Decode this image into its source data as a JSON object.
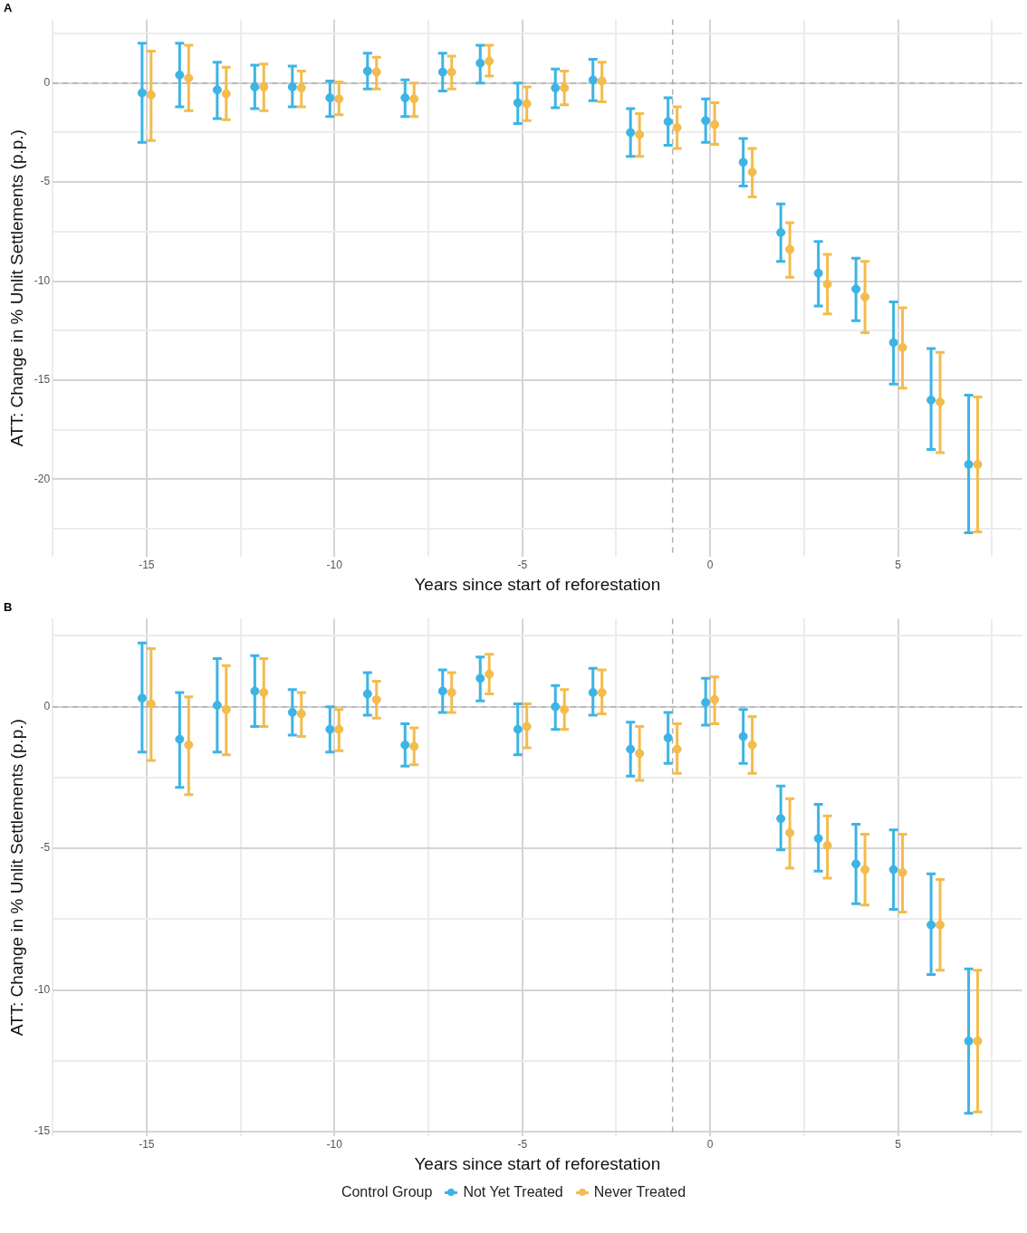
{
  "chart_data": [
    {
      "type": "scatter",
      "title": "A",
      "xlabel": "Years since start of reforestation",
      "ylabel": "ATT: Change in % Unlit Settlements (p.p.)",
      "grid": true,
      "legend": false,
      "marker": "circle",
      "xlim": [
        -17.5,
        8.3
      ],
      "ylim": [
        -23.9,
        3.2
      ],
      "xticks": [
        {
          "value": -17.5,
          "label": null
        },
        -15,
        {
          "value": -12.5,
          "label": null
        },
        -10,
        {
          "value": -7.5,
          "label": null
        },
        -5,
        {
          "value": -2.5,
          "label": null
        },
        0,
        {
          "value": 2.5,
          "label": null
        },
        5,
        {
          "value": 7.5,
          "label": null
        }
      ],
      "yticks": [
        {
          "value": -22.5,
          "label": null
        },
        -20,
        {
          "value": -17.5,
          "label": null
        },
        -15,
        {
          "value": -12.5,
          "label": null
        },
        -10,
        {
          "value": -7.5,
          "label": null
        },
        -5,
        {
          "value": -2.5,
          "label": null
        },
        0,
        {
          "value": 2.5,
          "label": null
        }
      ],
      "ref_lines": [
        {
          "axis": "y",
          "value": 0,
          "line_style": "dashed"
        },
        {
          "axis": "x",
          "value": -1,
          "line_style": "dashed"
        }
      ],
      "series": [
        {
          "color": "#3cb4e5",
          "x": [
            -15.12,
            -14.12,
            -13.12,
            -12.12,
            -11.12,
            -10.12,
            -9.12,
            -8.12,
            -7.12,
            -6.12,
            -5.12,
            -4.12,
            -3.12,
            -2.12,
            -1.12,
            -0.12,
            0.88,
            1.88,
            2.88,
            3.88,
            4.88,
            5.88,
            6.88
          ],
          "values": [
            -0.5,
            0.4,
            -0.35,
            -0.2,
            -0.2,
            -0.75,
            0.6,
            -0.75,
            0.55,
            1.0,
            -1.0,
            -0.25,
            0.15,
            -2.5,
            -1.95,
            -1.9,
            -4.0,
            -7.55,
            -9.6,
            -10.4,
            -13.1,
            -16.0,
            -19.25
          ],
          "errors": [
            [
              -3.0,
              2.0
            ],
            [
              -1.2,
              2.0
            ],
            [
              -1.8,
              1.05
            ],
            [
              -1.3,
              0.9
            ],
            [
              -1.2,
              0.85
            ],
            [
              -1.7,
              0.1
            ],
            [
              -0.3,
              1.5
            ],
            [
              -1.7,
              0.15
            ],
            [
              -0.4,
              1.5
            ],
            [
              0,
              1.9
            ],
            [
              -2.05,
              0
            ],
            [
              -1.25,
              0.7
            ],
            [
              -0.9,
              1.2
            ],
            [
              -3.7,
              -1.3
            ],
            [
              -3.15,
              -0.75
            ],
            [
              -3.0,
              -0.8
            ],
            [
              -5.2,
              -2.8
            ],
            [
              -9.0,
              -6.1
            ],
            [
              -11.25,
              -8.0
            ],
            [
              -12.0,
              -8.85
            ],
            [
              -15.2,
              -11.05
            ],
            [
              -18.5,
              -13.4
            ],
            [
              -22.7,
              -15.75
            ]
          ]
        },
        {
          "color": "#f3bc4d",
          "x": [
            -14.88,
            -13.88,
            -12.88,
            -11.88,
            -10.88,
            -9.88,
            -8.88,
            -7.88,
            -6.88,
            -5.88,
            -4.88,
            -3.88,
            -2.88,
            -1.88,
            -0.88,
            0.12,
            1.12,
            2.12,
            3.12,
            4.12,
            5.12,
            6.12,
            7.12
          ],
          "values": [
            -0.6,
            0.25,
            -0.55,
            -0.2,
            -0.25,
            -0.8,
            0.55,
            -0.8,
            0.55,
            1.1,
            -1.05,
            -0.25,
            0.1,
            -2.6,
            -2.25,
            -2.1,
            -4.5,
            -8.4,
            -10.15,
            -10.8,
            -13.35,
            -16.1,
            -19.25
          ],
          "errors": [
            [
              -2.9,
              1.6
            ],
            [
              -1.4,
              1.9
            ],
            [
              -1.85,
              0.8
            ],
            [
              -1.4,
              0.95
            ],
            [
              -1.2,
              0.6
            ],
            [
              -1.6,
              0.05
            ],
            [
              -0.3,
              1.3
            ],
            [
              -1.7,
              0
            ],
            [
              -0.3,
              1.35
            ],
            [
              0.35,
              1.9
            ],
            [
              -1.9,
              -0.2
            ],
            [
              -1.1,
              0.6
            ],
            [
              -0.95,
              1.05
            ],
            [
              -3.7,
              -1.55
            ],
            [
              -3.3,
              -1.2
            ],
            [
              -3.1,
              -1.0
            ],
            [
              -5.75,
              -3.3
            ],
            [
              -9.8,
              -7.05
            ],
            [
              -11.65,
              -8.65
            ],
            [
              -12.6,
              -9.0
            ],
            [
              -15.4,
              -11.35
            ],
            [
              -18.65,
              -13.6
            ],
            [
              -22.65,
              -15.85
            ]
          ]
        }
      ]
    },
    {
      "type": "scatter",
      "title": "B",
      "xlabel": "Years since start of reforestation",
      "ylabel": "ATT: Change in % Unlit Settlements (p.p.)",
      "grid": true,
      "legend": "bottom",
      "legend_title": "Control Group",
      "marker": "circle",
      "xlim": [
        -17.5,
        8.3
      ],
      "ylim": [
        -15.15,
        3.1
      ],
      "xticks": [
        {
          "value": -17.5,
          "label": null
        },
        -15,
        {
          "value": -12.5,
          "label": null
        },
        -10,
        {
          "value": -7.5,
          "label": null
        },
        -5,
        {
          "value": -2.5,
          "label": null
        },
        0,
        {
          "value": 2.5,
          "label": null
        },
        5,
        {
          "value": 7.5,
          "label": null
        }
      ],
      "yticks": [
        -15,
        {
          "value": -12.5,
          "label": null
        },
        -10,
        {
          "value": -7.5,
          "label": null
        },
        -5,
        {
          "value": -2.5,
          "label": null
        },
        0,
        {
          "value": 2.5,
          "label": null
        }
      ],
      "ref_lines": [
        {
          "axis": "y",
          "value": 0,
          "line_style": "dashed"
        },
        {
          "axis": "x",
          "value": -1,
          "line_style": "dashed"
        }
      ],
      "series": [
        {
          "name": "Not Yet Treated",
          "color": "#3cb4e5",
          "x": [
            -15.12,
            -14.12,
            -13.12,
            -12.12,
            -11.12,
            -10.12,
            -9.12,
            -8.12,
            -7.12,
            -6.12,
            -5.12,
            -4.12,
            -3.12,
            -2.12,
            -1.12,
            -0.12,
            0.88,
            1.88,
            2.88,
            3.88,
            4.88,
            5.88,
            6.88
          ],
          "values": [
            0.3,
            -1.15,
            0.05,
            0.55,
            -0.2,
            -0.8,
            0.45,
            -1.35,
            0.55,
            1.0,
            -0.8,
            0,
            0.5,
            -1.5,
            -1.1,
            0.15,
            -1.05,
            -3.95,
            -4.65,
            -5.55,
            -5.75,
            -7.7,
            -11.8
          ],
          "errors": [
            [
              -1.6,
              2.25
            ],
            [
              -2.85,
              0.5
            ],
            [
              -1.6,
              1.7
            ],
            [
              -0.7,
              1.8
            ],
            [
              -1.0,
              0.6
            ],
            [
              -1.6,
              0
            ],
            [
              -0.3,
              1.2
            ],
            [
              -2.1,
              -0.6
            ],
            [
              -0.2,
              1.3
            ],
            [
              0.2,
              1.75
            ],
            [
              -1.7,
              0.1
            ],
            [
              -0.8,
              0.75
            ],
            [
              -0.3,
              1.35
            ],
            [
              -2.45,
              -0.55
            ],
            [
              -2.0,
              -0.2
            ],
            [
              -0.65,
              1.0
            ],
            [
              -2.0,
              -0.1
            ],
            [
              -5.05,
              -2.8
            ],
            [
              -5.8,
              -3.45
            ],
            [
              -6.95,
              -4.15
            ],
            [
              -7.15,
              -4.35
            ],
            [
              -9.45,
              -5.9
            ],
            [
              -14.35,
              -9.25
            ]
          ]
        },
        {
          "name": "Never Treated",
          "color": "#f3bc4d",
          "x": [
            -14.88,
            -13.88,
            -12.88,
            -11.88,
            -10.88,
            -9.88,
            -8.88,
            -7.88,
            -6.88,
            -5.88,
            -4.88,
            -3.88,
            -2.88,
            -1.88,
            -0.88,
            0.12,
            1.12,
            2.12,
            3.12,
            4.12,
            5.12,
            6.12,
            7.12
          ],
          "values": [
            0.1,
            -1.35,
            -0.1,
            0.5,
            -0.25,
            -0.8,
            0.25,
            -1.4,
            0.5,
            1.15,
            -0.7,
            -0.1,
            0.5,
            -1.65,
            -1.5,
            0.25,
            -1.35,
            -4.45,
            -4.9,
            -5.75,
            -5.85,
            -7.7,
            -11.8
          ],
          "errors": [
            [
              -1.9,
              2.05
            ],
            [
              -3.1,
              0.35
            ],
            [
              -1.7,
              1.45
            ],
            [
              -0.7,
              1.7
            ],
            [
              -1.05,
              0.5
            ],
            [
              -1.55,
              -0.1
            ],
            [
              -0.4,
              0.9
            ],
            [
              -2.05,
              -0.75
            ],
            [
              -0.2,
              1.2
            ],
            [
              0.45,
              1.85
            ],
            [
              -1.45,
              0.1
            ],
            [
              -0.8,
              0.6
            ],
            [
              -0.25,
              1.3
            ],
            [
              -2.6,
              -0.7
            ],
            [
              -2.35,
              -0.6
            ],
            [
              -0.6,
              1.05
            ],
            [
              -2.35,
              -0.35
            ],
            [
              -5.7,
              -3.25
            ],
            [
              -6.05,
              -3.85
            ],
            [
              -7.0,
              -4.5
            ],
            [
              -7.25,
              -4.5
            ],
            [
              -9.3,
              -6.1
            ],
            [
              -14.3,
              -9.3
            ]
          ]
        }
      ]
    }
  ]
}
